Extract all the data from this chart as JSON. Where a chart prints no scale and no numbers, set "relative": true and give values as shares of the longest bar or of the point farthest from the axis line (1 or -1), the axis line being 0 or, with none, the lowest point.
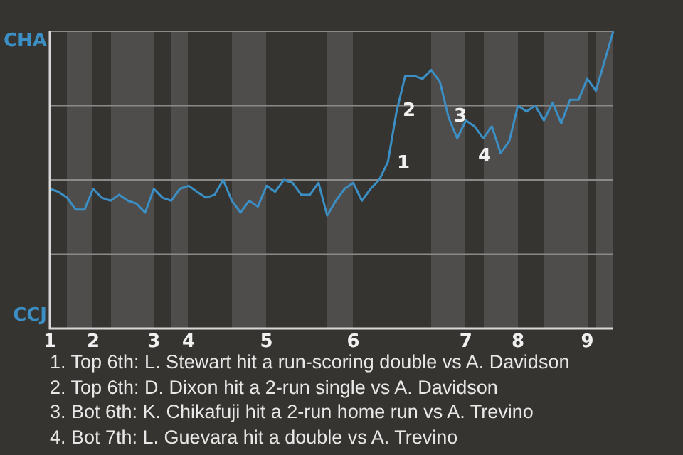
{
  "chart_data": {
    "type": "line",
    "relative": true,
    "categories": [
      "1",
      null,
      null,
      null,
      null,
      "2",
      null,
      null,
      null,
      null,
      null,
      null,
      "3",
      null,
      null,
      null,
      "4",
      null,
      null,
      null,
      null,
      null,
      null,
      null,
      null,
      "5",
      null,
      null,
      null,
      null,
      null,
      null,
      null,
      null,
      null,
      "6",
      null,
      null,
      null,
      null,
      null,
      null,
      null,
      null,
      null,
      null,
      null,
      null,
      "7",
      null,
      null,
      null,
      null,
      null,
      "8",
      null,
      null,
      null,
      null,
      null,
      null,
      null,
      "9",
      null,
      null,
      null
    ],
    "series": [
      {
        "color": "#3b8fc4",
        "values": [
          0.47,
          0.46,
          0.44,
          0.4,
          0.4,
          0.47,
          0.44,
          0.43,
          0.45,
          0.43,
          0.42,
          0.39,
          0.47,
          0.44,
          0.43,
          0.47,
          0.48,
          0.46,
          0.44,
          0.45,
          0.5,
          0.43,
          0.39,
          0.43,
          0.41,
          0.48,
          0.46,
          0.5,
          0.49,
          0.45,
          0.45,
          0.49,
          0.38,
          0.43,
          0.47,
          0.49,
          0.43,
          0.47,
          0.5,
          0.56,
          0.73,
          0.85,
          0.85,
          0.84,
          0.87,
          0.83,
          0.71,
          0.64,
          0.7,
          0.68,
          0.64,
          0.68,
          0.59,
          0.63,
          0.75,
          0.73,
          0.75,
          0.7,
          0.76,
          0.69,
          0.77,
          0.77,
          0.84,
          0.8,
          0.9,
          1
        ]
      }
    ],
    "ref_lines": [
      {
        "axis": "y",
        "value": 0.25,
        "color": "#8a8a8a"
      },
      {
        "axis": "y",
        "value": 0.5,
        "color": "#8a8a8a"
      },
      {
        "axis": "y",
        "value": 0.75,
        "color": "#8a8a8a"
      },
      {
        "axis": "y",
        "value": 1,
        "color": "#8a8a8a"
      }
    ],
    "legend": false,
    "annotations": [
      "CHA",
      "CCJ",
      "1",
      "2",
      "3",
      "4",
      "1. Top 6th: L. Stewart hit a run-scoring double vs A. Davidson",
      "2. Top 6th: D. Dixon hit a 2-run single vs A. Davidson",
      "3. Bot 6th: K. Chikafuji hit a 2-run home run vs A. Trevino",
      "4. Bot 7th: L. Guevara hit a double vs A. Trevino"
    ]
  }
}
